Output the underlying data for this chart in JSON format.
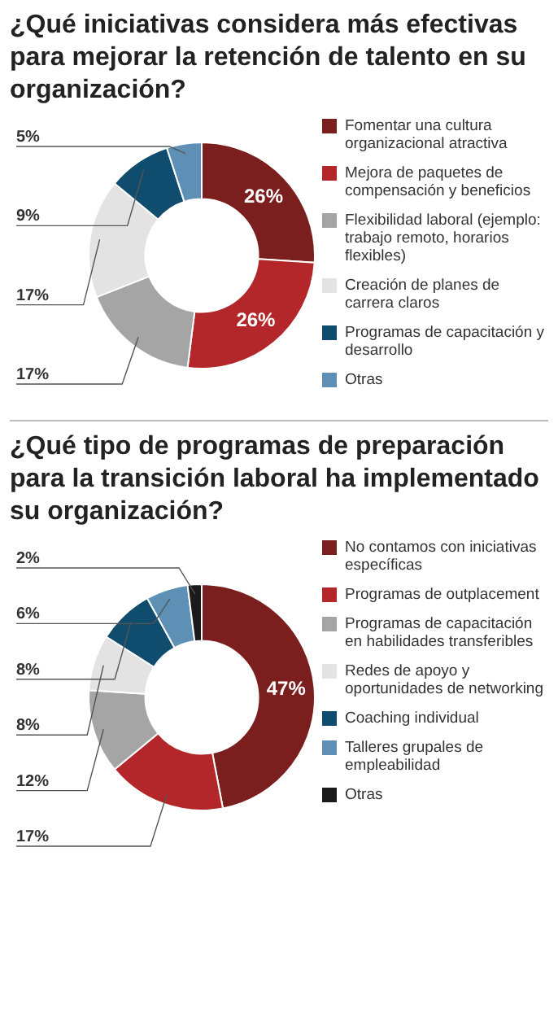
{
  "chart_data": [
    {
      "type": "donut",
      "title": "¿Qué iniciativas considera más efectivas para mejorar la retención de talento en su organización?",
      "categories": [
        "Fomentar una cultura organizacional atractiva",
        "Mejora de paquetes de compensación y beneficios",
        "Flexibilidad laboral (ejemplo: trabajo remoto, horarios flexibles)",
        "Creación de planes de carrera claros",
        "Programas de capacitación y desarrollo",
        "Otras"
      ],
      "values": [
        26,
        26,
        17,
        17,
        9,
        5
      ],
      "colors": [
        "#7b1e1e",
        "#b3272a",
        "#a5a5a5",
        "#e3e3e3",
        "#0f4c6e",
        "#5e90b6"
      ],
      "value_labels": [
        "26%",
        "26%",
        "17%",
        "17%",
        "9%",
        "5%"
      ],
      "legend": "right"
    },
    {
      "type": "donut",
      "title": "¿Qué tipo de programas de preparación para la transición laboral ha implementado su organización?",
      "categories": [
        "No contamos con iniciativas específicas",
        "Programas de outplacement",
        "Programas de capacitación en habilidades transferibles",
        "Redes de apoyo y oportunidades de networking",
        "Coaching individual",
        "Talleres grupales de empleabilidad",
        "Otras"
      ],
      "values": [
        47,
        17,
        12,
        8,
        8,
        6,
        2
      ],
      "colors": [
        "#7b1e1e",
        "#b3272a",
        "#a5a5a5",
        "#e3e3e3",
        "#0f4c6e",
        "#5e90b6",
        "#1a1a1a"
      ],
      "value_labels": [
        "47%",
        "17%",
        "12%",
        "8%",
        "8%",
        "6%",
        "2%"
      ],
      "legend": "right"
    }
  ]
}
